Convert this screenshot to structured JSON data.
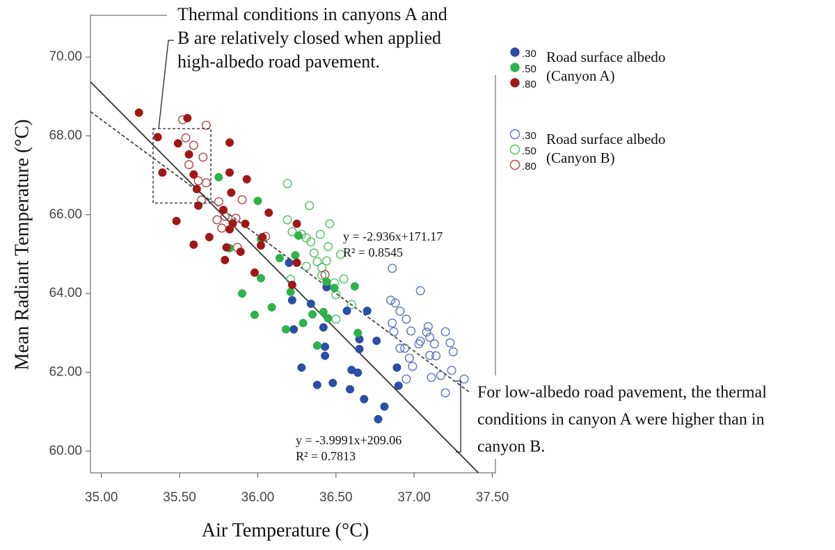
{
  "chart_data": {
    "type": "scatter",
    "x_label": "Air Temperature (°C)",
    "y_label": "Mean Radiant Temperature (°C)",
    "xlim": [
      34.93,
      37.52
    ],
    "ylim": [
      59.45,
      71.06
    ],
    "xticks": [
      {
        "value": 35,
        "label": "35.00"
      },
      {
        "value": 35.5,
        "label": "35.50"
      },
      {
        "value": 36,
        "label": "36.00"
      },
      {
        "value": 36.5,
        "label": "36.50"
      },
      {
        "value": 37,
        "label": "37.00"
      },
      {
        "value": 37.5,
        "label": "37.50"
      }
    ],
    "yticks": [
      {
        "value": 60,
        "label": "60.00"
      },
      {
        "value": 62,
        "label": "62.00"
      },
      {
        "value": 64,
        "label": "64.00"
      },
      {
        "value": 66,
        "label": "66.00"
      },
      {
        "value": 68,
        "label": "68.00"
      },
      {
        "value": 70,
        "label": "70.00"
      }
    ],
    "legend_groups": [
      {
        "title": "Road surface albedo",
        "subtitle": "(Canyon A)"
      },
      {
        "title": "Road surface albedo",
        "subtitle": "(Canyon B)"
      }
    ],
    "series": [
      {
        "name": ".30",
        "group": 0,
        "filled": true,
        "color": "#2b4ea6",
        "x": [
          36.2,
          36.22,
          36.23,
          36.34,
          36.28,
          36.38,
          36.42,
          36.43,
          36.43,
          36.44,
          36.48,
          36.57,
          36.59,
          36.6,
          36.64,
          36.65,
          36.65,
          36.68,
          36.7,
          36.76,
          36.77,
          36.81,
          36.89,
          36.9
        ],
        "values": [
          64.78,
          63.83,
          63.09,
          63.74,
          62.12,
          61.68,
          63.14,
          62.65,
          62.42,
          64.16,
          61.73,
          63.56,
          61.57,
          62.06,
          61.99,
          62.84,
          62.59,
          61.32,
          63.56,
          62.8,
          60.81,
          61.13,
          62.12,
          61.66
        ]
      },
      {
        "name": ".50",
        "group": 0,
        "filled": true,
        "color": "#2eb24a",
        "x": [
          35.75,
          36.0,
          35.82,
          35.9,
          36.02,
          35.98,
          36.09,
          36.14,
          36.18,
          36.21,
          36.24,
          36.26,
          36.29,
          36.35,
          36.38,
          36.42,
          36.44,
          36.45,
          36.49,
          36.62,
          36.64,
          36.02
        ],
        "values": [
          66.95,
          66.35,
          65.15,
          64.0,
          64.39,
          63.46,
          63.65,
          64.9,
          63.09,
          64.04,
          64.97,
          65.47,
          63.25,
          63.47,
          62.68,
          63.53,
          64.3,
          63.37,
          64.14,
          64.18,
          63.0,
          65.38
        ]
      },
      {
        "name": ".80",
        "group": 0,
        "filled": true,
        "color": "#a01717",
        "x": [
          35.24,
          35.36,
          35.39,
          35.49,
          35.55,
          35.56,
          35.59,
          35.61,
          35.62,
          35.48,
          35.59,
          35.69,
          35.78,
          35.79,
          35.8,
          35.82,
          35.82,
          35.83,
          35.82,
          35.84,
          35.89,
          35.92,
          35.93,
          35.98,
          36.02,
          36.03,
          36.07,
          36.22,
          36.25,
          36.25
        ],
        "values": [
          68.59,
          67.97,
          67.07,
          67.81,
          68.45,
          67.53,
          67.02,
          66.65,
          66.23,
          65.84,
          65.24,
          65.43,
          66.12,
          64.85,
          65.17,
          67.07,
          67.83,
          66.56,
          65.63,
          65.78,
          65.06,
          65.77,
          66.9,
          64.53,
          65.22,
          65.43,
          66.05,
          64.22,
          64.78,
          65.77
        ]
      },
      {
        "name": ".30",
        "group": 1,
        "filled": false,
        "color": "#5a74c6",
        "x": [
          36.86,
          36.85,
          36.88,
          36.91,
          36.95,
          36.98,
          36.86,
          36.87,
          36.91,
          36.94,
          36.97,
          36.99,
          37.03,
          37.04,
          37.04,
          37.08,
          37.09,
          37.1,
          37.13,
          37.1,
          37.14,
          37.2,
          37.23,
          37.25,
          37.11,
          37.17,
          37.2,
          37.24,
          37.32,
          36.95
        ],
        "values": [
          64.64,
          63.83,
          63.76,
          63.55,
          63.35,
          63.05,
          63.25,
          63.03,
          62.61,
          62.61,
          62.36,
          62.15,
          62.72,
          64.07,
          62.79,
          63.02,
          63.16,
          62.89,
          62.72,
          62.43,
          62.42,
          63.03,
          62.75,
          62.52,
          61.87,
          61.92,
          61.48,
          62.05,
          61.83,
          61.83
        ]
      },
      {
        "name": ".50",
        "group": 1,
        "filled": false,
        "color": "#4cc25c",
        "x": [
          36.19,
          36.33,
          36.19,
          36.22,
          36.28,
          36.31,
          36.34,
          36.4,
          36.46,
          36.45,
          36.36,
          36.38,
          36.31,
          36.41,
          36.41,
          36.44,
          36.49,
          36.53,
          36.55,
          36.6,
          36.21,
          36.5,
          36.5
        ],
        "values": [
          66.79,
          66.23,
          65.87,
          65.57,
          65.5,
          65.41,
          65.31,
          65.5,
          65.77,
          65.19,
          65.03,
          64.81,
          64.69,
          64.66,
          64.46,
          64.83,
          64.27,
          64.99,
          64.37,
          63.72,
          64.36,
          63.97,
          63.35
        ]
      },
      {
        "name": ".80",
        "group": 1,
        "filled": false,
        "color": "#b04545",
        "x": [
          35.52,
          35.54,
          35.59,
          35.56,
          35.65,
          35.67,
          35.62,
          35.67,
          35.64,
          35.75,
          35.74,
          35.77,
          35.79,
          35.86,
          35.9,
          35.87,
          36.05,
          36.43
        ],
        "values": [
          68.41,
          67.95,
          67.76,
          67.27,
          67.46,
          68.27,
          66.86,
          66.81,
          66.37,
          66.33,
          65.87,
          65.66,
          65.96,
          65.91,
          66.38,
          65.17,
          65.45,
          64.48
        ]
      }
    ],
    "fits": [
      {
        "label": "y = -2.936x+171.17",
        "r2_label": "R² = 0.8545",
        "slope": -2.936,
        "intercept": 171.17,
        "style": "dashed"
      },
      {
        "label": "y = -3.9991x+209.06",
        "r2_label": "R² = 0.7813",
        "slope": -3.9991,
        "intercept": 209.06,
        "style": "solid"
      }
    ],
    "annotations": [
      {
        "lines": [
          "Thermal conditions in canyons A and",
          "B are relatively closed when applied",
          "high-albedo road pavement."
        ]
      },
      {
        "lines": [
          "For low-albedo road pavement, the thermal",
          "conditions in canyon A were higher than in",
          "canyon B."
        ]
      }
    ]
  }
}
